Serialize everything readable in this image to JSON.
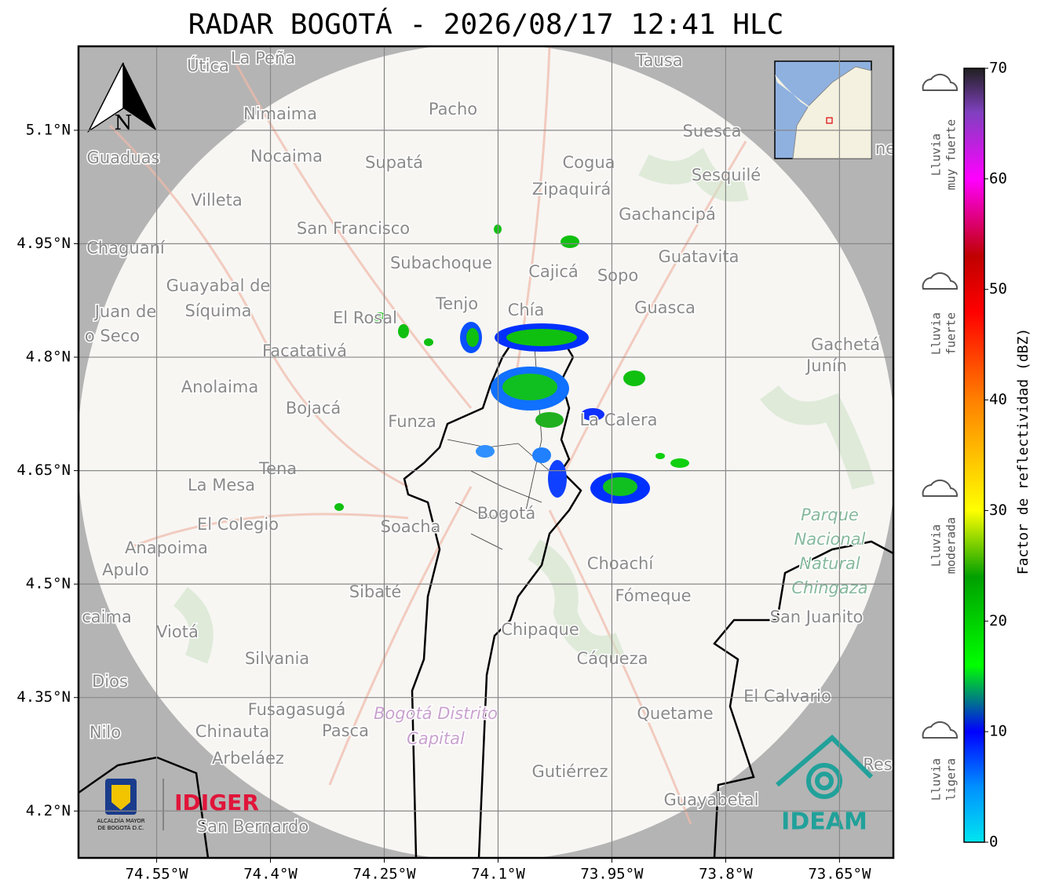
{
  "title": "RADAR BOGOTÁ - 2026/08/17 12:41 HLC",
  "map": {
    "xlim": [
      -74.653,
      -73.579
    ],
    "ylim": [
      4.138,
      5.211
    ],
    "grid": true,
    "xticks": [
      {
        "value": -74.55,
        "label": "74.55°W"
      },
      {
        "value": -74.4,
        "label": "74.4°W"
      },
      {
        "value": -74.25,
        "label": "74.25°W"
      },
      {
        "value": -74.1,
        "label": "74.1°W"
      },
      {
        "value": -73.95,
        "label": "73.95°W"
      },
      {
        "value": -73.8,
        "label": "73.8°W"
      },
      {
        "value": -73.65,
        "label": "73.65°W"
      }
    ],
    "yticks": [
      {
        "value": 5.1,
        "label": "5.1°N"
      },
      {
        "value": 4.95,
        "label": "4.95°N"
      },
      {
        "value": 4.8,
        "label": "4.8°N"
      },
      {
        "value": 4.65,
        "label": "4.65°N"
      },
      {
        "value": 4.5,
        "label": "4.5°N"
      },
      {
        "value": 4.35,
        "label": "4.35°N"
      },
      {
        "value": 4.2,
        "label": "4.2°N"
      }
    ],
    "north_label": "N",
    "places": [
      "Útica",
      "La Peña",
      "Tausa",
      "Pacho",
      "Nimaima",
      "Guaduas",
      "Nocaima",
      "Supatá",
      "Cogua",
      "Suesca",
      "Sesquilé",
      "Zipaquirá",
      "Villeta",
      "Gachancipá",
      "San Francisco",
      "Chaguaní",
      "Guatavita",
      "Subachoque",
      "Cajicá",
      "Sopo",
      "Guayabal de",
      "Síquima",
      "Tenjo",
      "Chía",
      "Guasca",
      "Juan de",
      "o Seco",
      "El Rosal",
      "Facatativá",
      "Gachetá",
      "Junín",
      "Anolaima",
      "Bojacá",
      "Funza",
      "La Calera",
      "Tena",
      "La Mesa",
      "El Colegio",
      "Soacha",
      "Bogotá",
      "Anapoima",
      "Apulo",
      "Choachí",
      "Sibaté",
      "Fómeque",
      "San Juanito",
      "caima",
      "Viotá",
      "Chipaque",
      "Silvania",
      "Cáqueza",
      "Dios",
      "El Calvario",
      "Fusagasugá",
      "Quetame",
      "Nilo",
      "Chinauta",
      "Pasca",
      "Arbeláez",
      "Gutiérrez",
      "Guayabetal",
      "San Bernardo",
      "Res",
      "ne"
    ],
    "park_lines": [
      "Parque",
      "Nacional",
      "Natural",
      "Chingaza"
    ],
    "district_lines": [
      "Bogotá Distrito",
      "Capital"
    ]
  },
  "colorbar": {
    "label": "Factor de reflectividad (dBZ)",
    "lim": [
      0,
      70
    ],
    "ticks": [
      0,
      10,
      20,
      30,
      40,
      50,
      60,
      70
    ],
    "stops": [
      {
        "value": 0,
        "color": "#00e6f0"
      },
      {
        "value": 5,
        "color": "#0090ff"
      },
      {
        "value": 10,
        "color": "#0000ff"
      },
      {
        "value": 16,
        "color": "#00ff00"
      },
      {
        "value": 24,
        "color": "#00a000"
      },
      {
        "value": 30,
        "color": "#ffff00"
      },
      {
        "value": 40,
        "color": "#ff8000"
      },
      {
        "value": 48,
        "color": "#ff0000"
      },
      {
        "value": 53,
        "color": "#c00000"
      },
      {
        "value": 60,
        "color": "#ff00ff"
      },
      {
        "value": 66,
        "color": "#8040c0"
      },
      {
        "value": 70,
        "color": "#202020"
      }
    ]
  },
  "rain_levels": [
    [
      "Lluvia",
      "muy fuerte"
    ],
    [
      "Lluvia",
      "fuerte"
    ],
    [
      "Lluvia",
      "moderada"
    ],
    [
      "Lluvia",
      "ligera"
    ]
  ],
  "logos": {
    "alcaldia": [
      "ALCALDÍA MAYOR",
      "DE BOGOTÁ D.C."
    ],
    "idiger": "IDIGER",
    "ideam": "IDEAM"
  }
}
